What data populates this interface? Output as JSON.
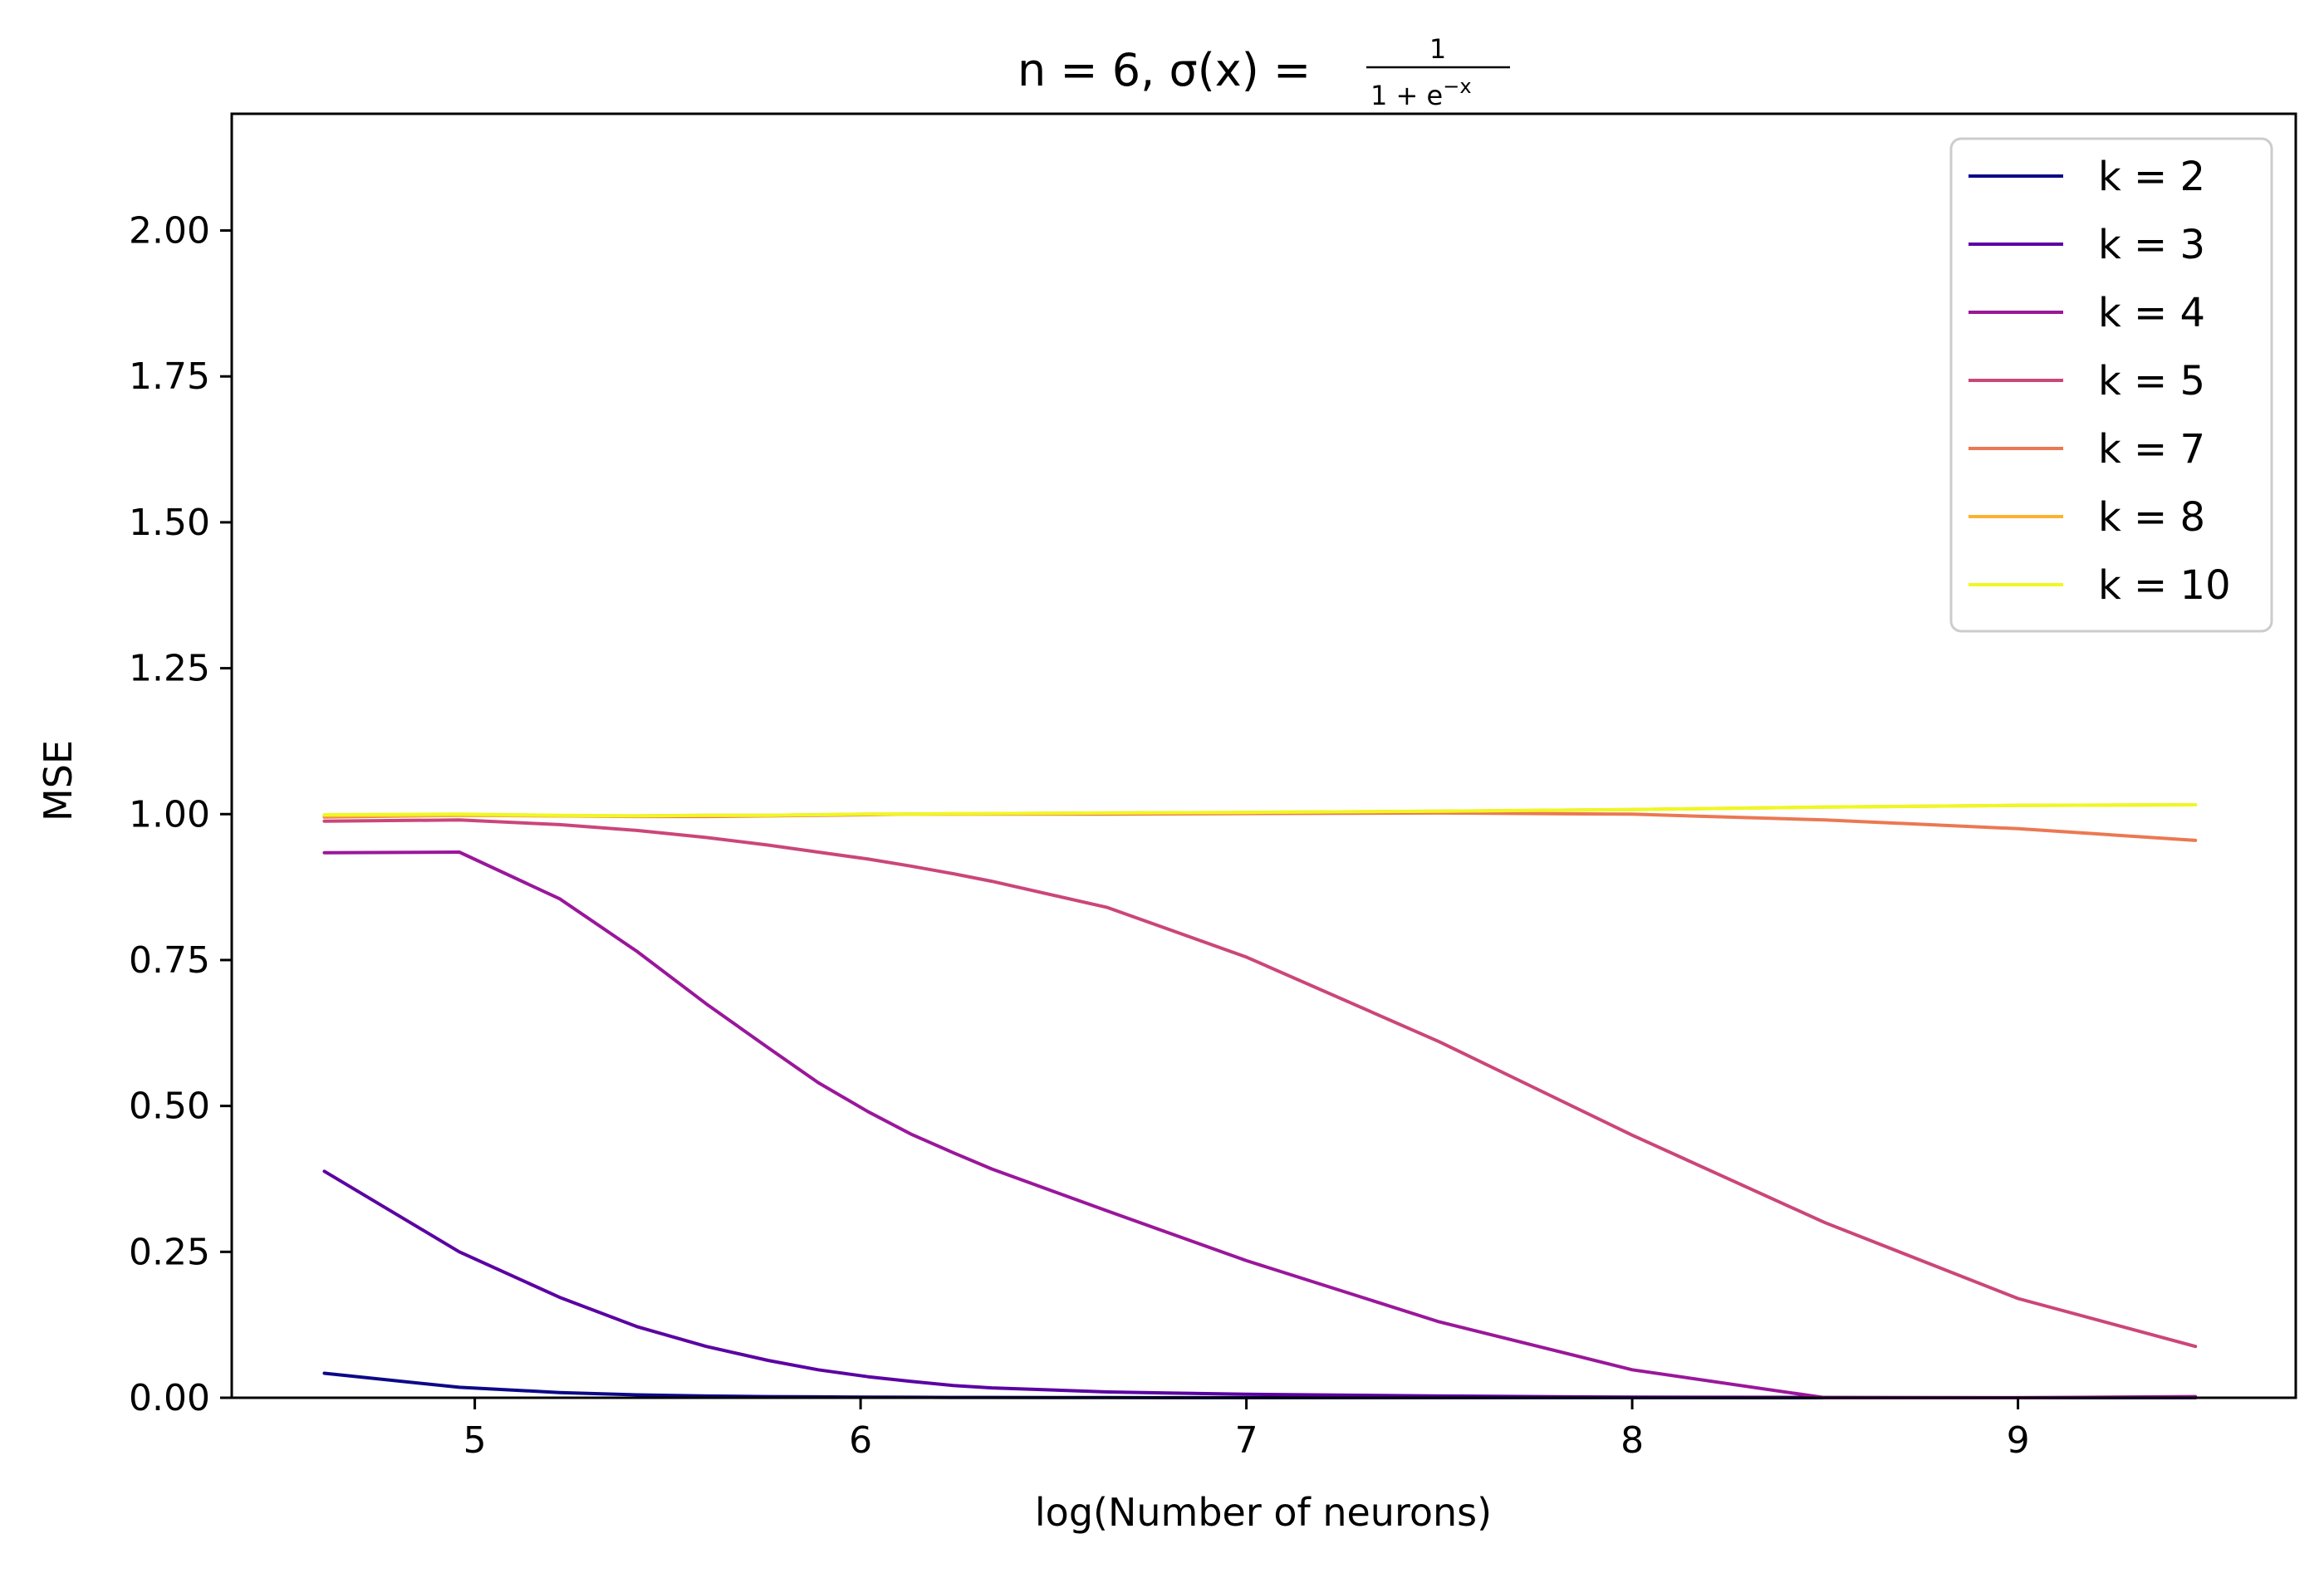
{
  "chart_data": {
    "type": "line",
    "title": {
      "main": "n = 6, σ(x) = ",
      "numerator": "1",
      "denominator": "1 + e",
      "exponent": "−x"
    },
    "xlabel": "log(Number of neurons)",
    "ylabel": "MSE",
    "xlim": [
      4.37,
      9.72
    ],
    "ylim": [
      0,
      2.2
    ],
    "xticks": [
      {
        "value": 5,
        "label": "5"
      },
      {
        "value": 6,
        "label": "6"
      },
      {
        "value": 7,
        "label": "7"
      },
      {
        "value": 8,
        "label": "8"
      },
      {
        "value": 9,
        "label": "9"
      }
    ],
    "yticks": [
      {
        "value": 0,
        "label": "0.00"
      },
      {
        "value": 0.25,
        "label": "0.25"
      },
      {
        "value": 0.5,
        "label": "0.50"
      },
      {
        "value": 0.75,
        "label": "0.75"
      },
      {
        "value": 1.0,
        "label": "1.00"
      },
      {
        "value": 1.25,
        "label": "1.25"
      },
      {
        "value": 1.5,
        "label": "1.50"
      },
      {
        "value": 1.75,
        "label": "1.75"
      },
      {
        "value": 2.0,
        "label": "2.00"
      }
    ],
    "grid": false,
    "legend_position": "top-right",
    "x": [
      4.61,
      4.96,
      5.22,
      5.42,
      5.6,
      5.76,
      5.89,
      6.02,
      6.13,
      6.24,
      6.34,
      6.64,
      7.0,
      7.5,
      8.0,
      8.5,
      9.0,
      9.46
    ],
    "series": [
      {
        "name": "k = 2",
        "color": "#0d0887",
        "values": [
          0.042,
          0.018,
          0.009,
          0.005,
          0.003,
          0.002,
          0.0015,
          0.001,
          0.0008,
          0.0006,
          0.0005,
          0.0003,
          0.0002,
          0.0001,
          0.0001,
          0.0,
          0.0,
          0.0
        ]
      },
      {
        "name": "k = 3",
        "color": "#5b02a3",
        "values": [
          0.388,
          0.25,
          0.172,
          0.122,
          0.088,
          0.064,
          0.048,
          0.036,
          0.028,
          0.021,
          0.017,
          0.01,
          0.006,
          0.003,
          0.001,
          0.0005,
          0.0002,
          0.0001
        ]
      },
      {
        "name": "k = 4",
        "color": "#9a179b",
        "values": [
          0.934,
          0.935,
          0.855,
          0.765,
          0.675,
          0.6,
          0.54,
          0.49,
          0.452,
          0.42,
          0.392,
          0.32,
          0.235,
          0.13,
          0.048,
          0.0,
          0.0,
          0.002
        ]
      },
      {
        "name": "k = 5",
        "color": "#cb4679",
        "values": [
          0.988,
          0.99,
          0.982,
          0.972,
          0.96,
          0.947,
          0.935,
          0.923,
          0.911,
          0.898,
          0.885,
          0.84,
          0.755,
          0.61,
          0.45,
          0.3,
          0.17,
          0.088
        ]
      },
      {
        "name": "k = 7",
        "color": "#eb7852",
        "values": [
          0.995,
          0.998,
          0.997,
          0.996,
          0.996,
          0.997,
          0.998,
          0.999,
          1.0,
          1.0,
          1.0,
          1.0,
          1.001,
          1.002,
          1.0,
          0.99,
          0.975,
          0.955
        ]
      },
      {
        "name": "k = 8",
        "color": "#fbb32f",
        "values": [
          0.997,
          0.998,
          0.997,
          0.997,
          0.998,
          0.998,
          0.999,
          1.0,
          1.0,
          1.0,
          1.001,
          1.002,
          1.003,
          1.005,
          1.008,
          1.012,
          1.015,
          1.016
        ]
      },
      {
        "name": "k = 10",
        "color": "#eff821",
        "values": [
          0.999,
          1.0,
          0.998,
          0.997,
          0.998,
          0.998,
          0.999,
          1.0,
          1.0,
          1.001,
          1.001,
          1.002,
          1.003,
          1.005,
          1.008,
          1.012,
          1.015,
          1.016
        ]
      }
    ]
  }
}
